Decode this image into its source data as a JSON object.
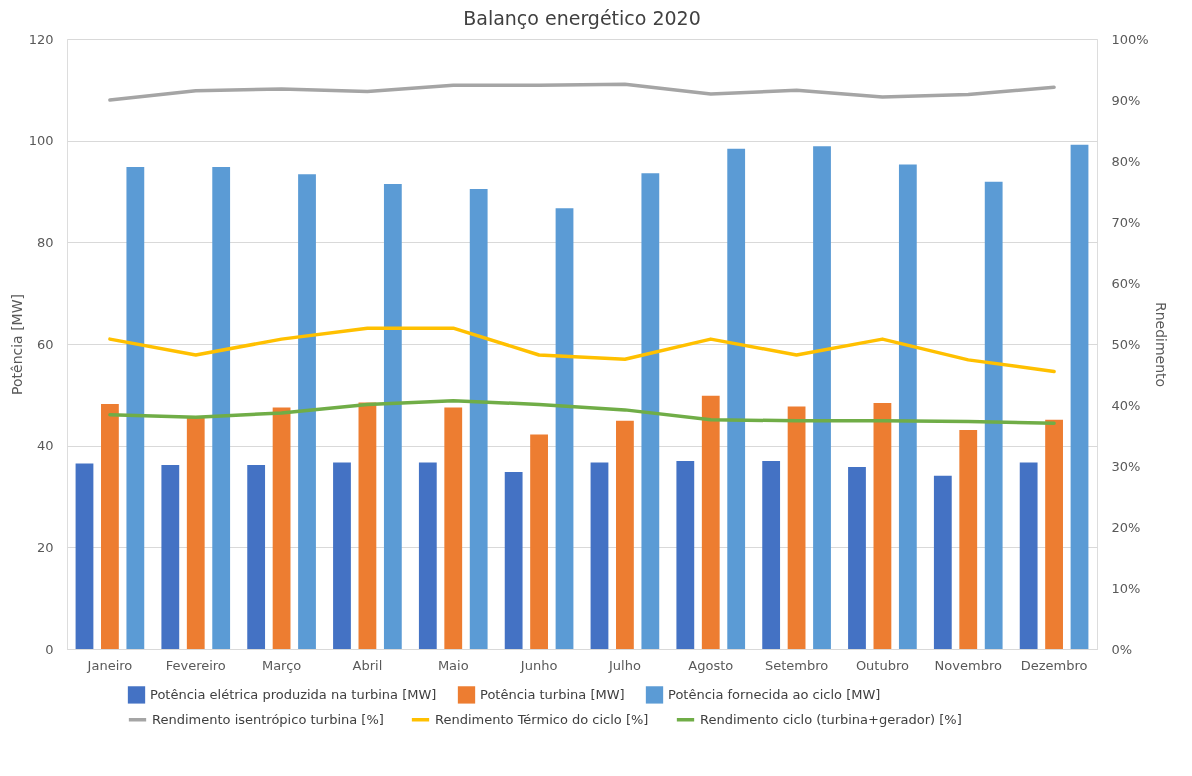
{
  "chart_data": {
    "type": "bar",
    "title": "Balanço energético 2020",
    "ylabel": "Potência [MW]",
    "y2label": "Rnedimento",
    "categories": [
      "Janeiro",
      "Fevereiro",
      "Março",
      "Abril",
      "Maio",
      "Junho",
      "Julho",
      "Agosto",
      "Setembro",
      "Outubro",
      "Novembro",
      "Dezembro"
    ],
    "series": [
      {
        "name": "Potência elétrica produzida na turbina [MW]",
        "color": "#4472c4",
        "values": [
          36.5,
          36.2,
          36.2,
          36.7,
          36.7,
          34.8,
          36.7,
          37.0,
          37.0,
          35.8,
          34.1,
          36.7
        ]
      },
      {
        "name": "Potência turbina [MW]",
        "color": "#ed7d31",
        "values": [
          48.2,
          45.6,
          47.5,
          48.5,
          47.5,
          42.2,
          44.9,
          49.8,
          47.7,
          48.4,
          43.1,
          45.1
        ]
      },
      {
        "name": "Potência fornecida ao ciclo [MW]",
        "color": "#5b9bd5",
        "values": [
          94.8,
          94.8,
          93.4,
          91.5,
          90.5,
          86.7,
          93.6,
          98.4,
          98.9,
          95.3,
          91.9,
          99.2
        ]
      },
      {
        "name": "Rendimento isentrópico turbina [%]",
        "type": "line",
        "axis": "y2",
        "color": "#a5a5a5",
        "values": [
          90.0,
          91.5,
          91.8,
          91.4,
          92.4,
          92.4,
          92.6,
          91.0,
          91.6,
          90.5,
          90.9,
          92.1
        ]
      },
      {
        "name": "Rendimento Térmico do ciclo [%]",
        "type": "line",
        "axis": "y2",
        "color": "#ffc000",
        "values": [
          50.8,
          48.2,
          50.8,
          52.6,
          52.6,
          48.2,
          47.5,
          50.8,
          48.2,
          50.8,
          47.4,
          45.5
        ]
      },
      {
        "name": "Rendimento ciclo (turbina+gerador) [%]",
        "type": "line",
        "axis": "y2",
        "color": "#70ad47",
        "values": [
          38.4,
          38.0,
          38.7,
          40.1,
          40.7,
          40.1,
          39.2,
          37.6,
          37.4,
          37.4,
          37.3,
          37.0
        ]
      }
    ],
    "ylim": [
      0,
      120
    ],
    "yticks": [
      0,
      20,
      40,
      60,
      80,
      100,
      120
    ],
    "y2lim": [
      0,
      100
    ],
    "y2ticks": [
      {
        "value": 0,
        "label": "0%"
      },
      {
        "value": 10,
        "label": "10%"
      },
      {
        "value": 20,
        "label": "20%"
      },
      {
        "value": 30,
        "label": "30%"
      },
      {
        "value": 40,
        "label": "40%"
      },
      {
        "value": 50,
        "label": "50%"
      },
      {
        "value": 60,
        "label": "60%"
      },
      {
        "value": 70,
        "label": "70%"
      },
      {
        "value": 80,
        "label": "80%"
      },
      {
        "value": 90,
        "label": "90%"
      },
      {
        "value": 100,
        "label": "100%"
      }
    ],
    "grid": "y",
    "legend": "bottom"
  }
}
